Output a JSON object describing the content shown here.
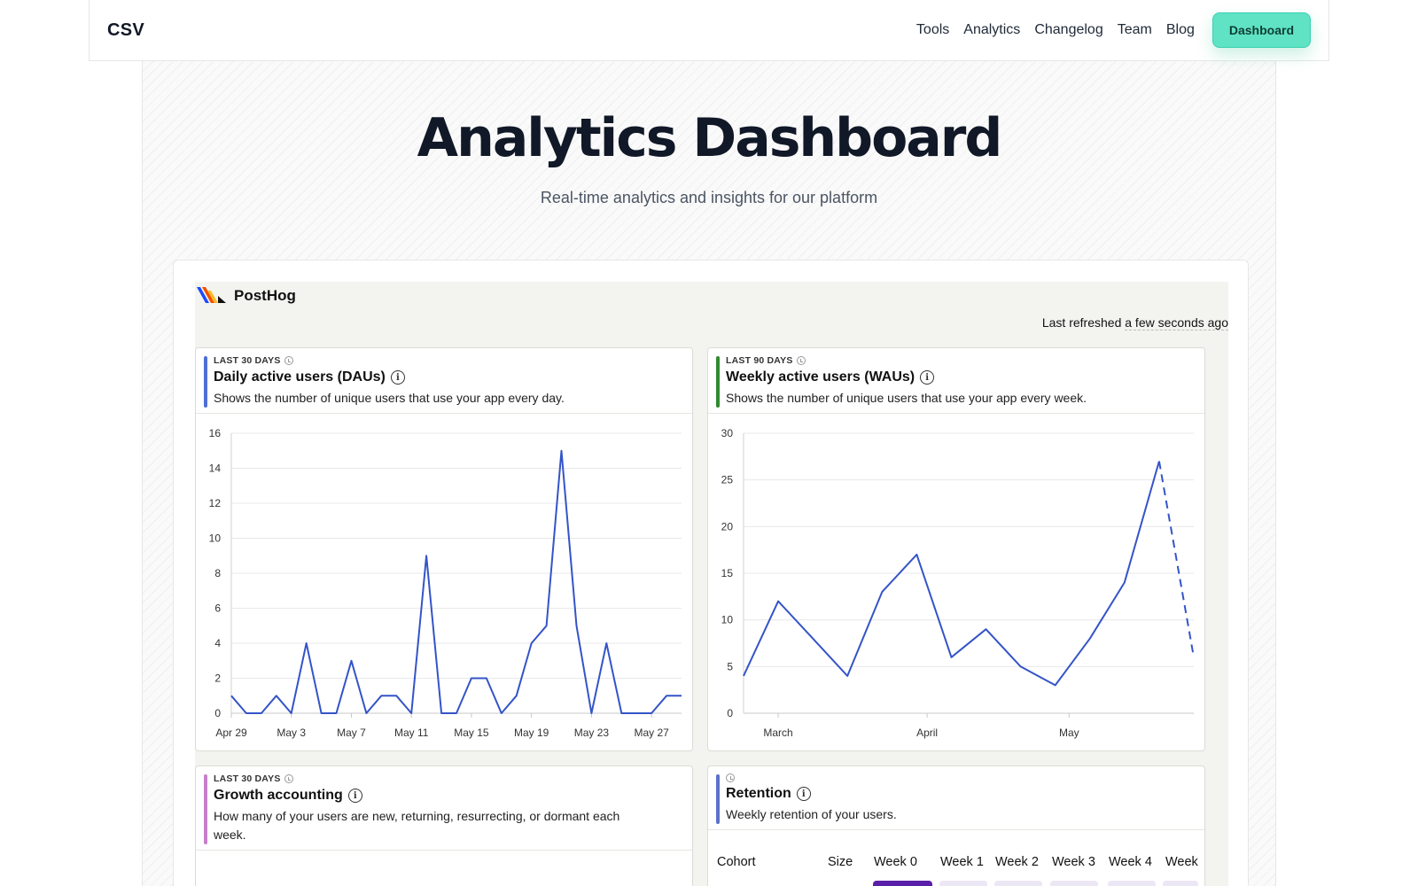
{
  "nav": {
    "brand": "CSV",
    "links": [
      "Tools",
      "Analytics",
      "Changelog",
      "Team",
      "Blog"
    ],
    "cta": "Dashboard"
  },
  "hero": {
    "title": "Analytics Dashboard",
    "subtitle": "Real-time analytics and insights for our platform"
  },
  "posthog": {
    "brand": "PostHog",
    "refreshed_label": "Last refreshed",
    "refreshed_when": "a few seconds ago"
  },
  "cards": {
    "dau": {
      "period": "LAST 30 DAYS",
      "title": "Daily active users (DAUs)",
      "description": "Shows the number of unique users that use your app every day.",
      "accent": "#4f6fd6"
    },
    "wau": {
      "period": "LAST 90 DAYS",
      "title": "Weekly active users (WAUs)",
      "description": "Shows the number of unique users that use your app every week.",
      "accent": "#2f8a2f"
    },
    "growth": {
      "period": "LAST 30 DAYS",
      "title": "Growth accounting",
      "description": "How many of your users are new, returning, resurrecting, or dormant each week.",
      "accent": "#c77fcc"
    },
    "retention": {
      "title": "Retention",
      "description": "Weekly retention of your users.",
      "accent": "#5b72c9",
      "columns": [
        "Cohort",
        "Size",
        "Week 0",
        "Week 1",
        "Week 2",
        "Week 3",
        "Week 4",
        "Week"
      ]
    }
  },
  "chart_data": [
    {
      "type": "line",
      "title": "Daily active users (DAUs)",
      "x_tick_labels": [
        "Apr 29",
        "May 3",
        "May 7",
        "May 11",
        "May 15",
        "May 19",
        "May 23",
        "May 27"
      ],
      "y_ticks": [
        0,
        2,
        4,
        6,
        8,
        10,
        12,
        14,
        16
      ],
      "ylim": [
        0,
        16
      ],
      "color": "#3454c8",
      "x_start": "Apr 29",
      "series": [
        {
          "values": [
            1,
            0,
            0,
            1,
            0,
            4,
            0,
            0,
            3,
            0,
            1,
            1,
            0,
            9,
            0,
            0,
            2,
            2,
            0,
            1,
            4,
            5,
            15,
            5,
            0,
            4,
            0,
            0,
            0,
            1,
            1
          ]
        }
      ],
      "grid": true
    },
    {
      "type": "line",
      "title": "Weekly active users (WAUs)",
      "x_tick_labels": [
        "March",
        "April",
        "May"
      ],
      "y_ticks": [
        0,
        5,
        10,
        15,
        20,
        25,
        30
      ],
      "ylim": [
        0,
        30
      ],
      "color": "#3454c8",
      "series": [
        {
          "values": [
            4,
            12,
            8,
            4,
            13,
            17,
            6,
            9,
            5,
            3,
            8,
            14,
            27,
            6
          ],
          "incomplete_last_segment": true
        }
      ],
      "grid": true
    }
  ]
}
